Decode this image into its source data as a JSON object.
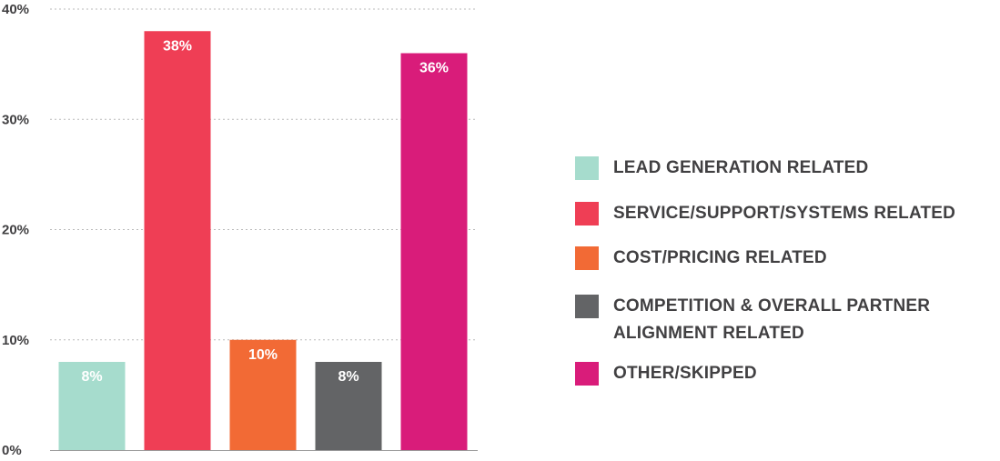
{
  "chart_data": {
    "type": "bar",
    "categories": [
      "LEAD GENERATION RELATED",
      "SERVICE/SUPPORT/SYSTEMS RELATED",
      "COST/PRICING RELATED",
      "COMPETITION & OVERALL PARTNER ALIGNMENT RELATED",
      "OTHER/SKIPPED"
    ],
    "values": [
      8,
      38,
      10,
      8,
      36
    ],
    "value_labels": [
      "8%",
      "38%",
      "10%",
      "8%",
      "36%"
    ],
    "colors": [
      "#a6dccd",
      "#ef3e55",
      "#f26a35",
      "#636466",
      "#d91c7a"
    ],
    "ylim": [
      0,
      40
    ],
    "yticks": [
      0,
      10,
      20,
      30,
      40
    ],
    "ytick_labels": [
      "0%",
      "10%",
      "20%",
      "30%",
      "40%"
    ],
    "grid": true,
    "legend_position": "right",
    "title": "",
    "xlabel": "",
    "ylabel": ""
  },
  "legend": {
    "items": [
      {
        "lines": [
          "LEAD GENERATION RELATED"
        ],
        "color": "#a6dccd"
      },
      {
        "lines": [
          "SERVICE/SUPPORT/SYSTEMS RELATED"
        ],
        "color": "#ef3e55"
      },
      {
        "lines": [
          "COST/PRICING RELATED"
        ],
        "color": "#f26a35"
      },
      {
        "lines": [
          "COMPETITION & OVERALL PARTNER",
          "ALIGNMENT RELATED"
        ],
        "color": "#636466"
      },
      {
        "lines": [
          "OTHER/SKIPPED"
        ],
        "color": "#d91c7a"
      }
    ]
  }
}
